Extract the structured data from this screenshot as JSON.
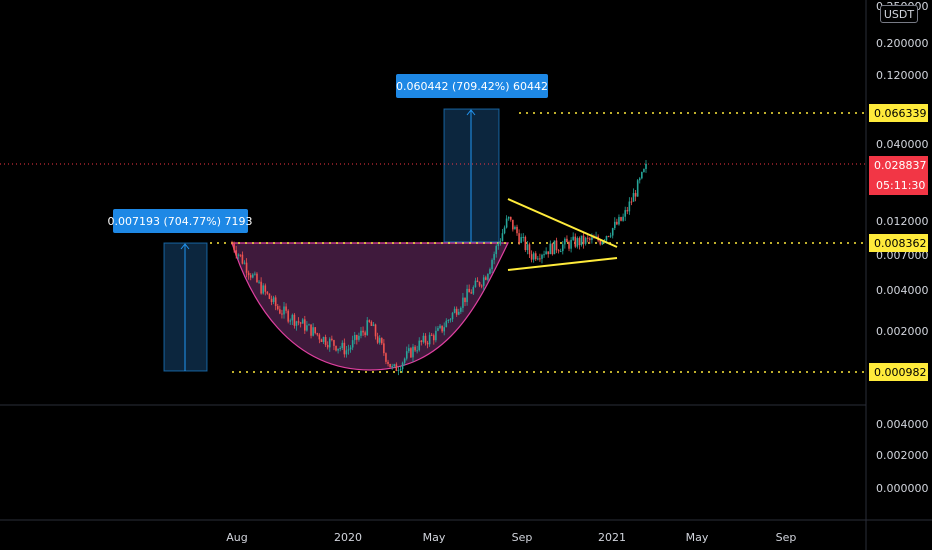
{
  "currency": "USDT",
  "upper_axis_ticks": [
    "0.250000",
    "0.200000",
    "0.120000",
    "0.040000",
    "0.012000",
    "0.007000",
    "0.004000",
    "0.002000"
  ],
  "lower_axis_ticks": [
    "0.004000",
    "0.002000",
    "0.000000"
  ],
  "date_ticks": [
    "Aug",
    "2020",
    "May",
    "Sep",
    "2021",
    "May",
    "Sep"
  ],
  "price_labels": {
    "target": "0.066339",
    "current": "0.028837",
    "countdown": "05:11:30",
    "resistance": "0.008362",
    "support": "0.000982"
  },
  "measure_labels": {
    "first": "0.007193 (704.77%) 7193",
    "second": "0.060442 (709.42%) 60442"
  },
  "colors": {
    "background": "#000000",
    "up": "#26a69a",
    "down": "#ef5350",
    "level_line": "#ffeb3b",
    "measure_fill": "#0d2a45",
    "measure_stroke": "#2196f3",
    "measure_label": "#1e88e5",
    "cup_fill": "#4a1f47",
    "cup_stroke": "#e040a0",
    "current_price": "#f23645"
  },
  "chart_data": {
    "type": "candlestick",
    "y_scale": "log",
    "x_ticks": [
      "Aug",
      "2020",
      "May",
      "Sep",
      "2021",
      "May",
      "Sep"
    ],
    "y_ticks": [
      0.25,
      0.2,
      0.12,
      0.04,
      0.012,
      0.007,
      0.004,
      0.002
    ],
    "horizontal_levels": [
      0.066339,
      0.028837,
      0.008362,
      0.000982
    ],
    "current_price": 0.028837,
    "measures": [
      {
        "change": 0.007193,
        "percent": 704.77,
        "ticks": 7193
      },
      {
        "change": 0.060442,
        "percent": 709.42,
        "ticks": 60442
      }
    ],
    "patterns": [
      "cup",
      "symmetrical-triangle"
    ],
    "price_path": [
      {
        "x": "Aug 2019",
        "y": 0.0083
      },
      {
        "x": "Sep 2019",
        "y": 0.0045
      },
      {
        "x": "Oct 2019",
        "y": 0.0028
      },
      {
        "x": "Nov 2019",
        "y": 0.0022
      },
      {
        "x": "Dec 2019",
        "y": 0.0017
      },
      {
        "x": "Jan 2020",
        "y": 0.0014
      },
      {
        "x": "Feb 2020",
        "y": 0.0022
      },
      {
        "x": "Mar 2020",
        "y": 0.001
      },
      {
        "x": "Apr 2020",
        "y": 0.0015
      },
      {
        "x": "May 2020",
        "y": 0.0019
      },
      {
        "x": "Jun 2020",
        "y": 0.0032
      },
      {
        "x": "Jul 2020",
        "y": 0.0048
      },
      {
        "x": "Aug 2020",
        "y": 0.0125
      },
      {
        "x": "Sep 2020",
        "y": 0.0068
      },
      {
        "x": "Oct 2020",
        "y": 0.0078
      },
      {
        "x": "Nov 2020",
        "y": 0.0085
      },
      {
        "x": "Dec 2020",
        "y": 0.0088
      },
      {
        "x": "Jan 2021",
        "y": 0.0125
      },
      {
        "x": "Feb 2021",
        "y": 0.028837
      }
    ]
  }
}
